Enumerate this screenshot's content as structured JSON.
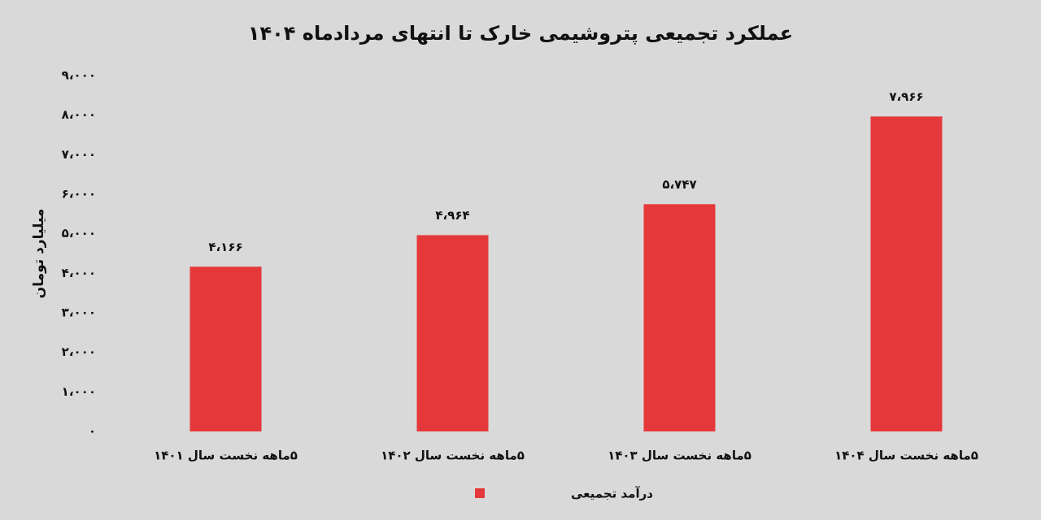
{
  "chart_data": {
    "type": "bar",
    "title": "عملکرد تجمیعی پتروشیمی خارک تا انتهای مردادماه ۱۴۰۴",
    "y_label": "میلیارد تومان",
    "categories": [
      "۵ماهه نخست سال ۱۴۰۱",
      "۵ماهه نخست سال ۱۴۰۲",
      "۵ماهه نخست سال ۱۴۰۳",
      "۵ماهه نخست سال ۱۴۰۴"
    ],
    "series": [
      {
        "name": "درآمد تجمیعی",
        "color": "#e5383b",
        "values": [
          4166,
          4964,
          5747,
          7966
        ],
        "value_labels": [
          "۴،۱۶۶",
          "۴،۹۶۴",
          "۵،۷۴۷",
          "۷،۹۶۶"
        ]
      }
    ],
    "ylim": [
      0,
      9000
    ],
    "yticks": [
      {
        "value": 0,
        "label": "۰"
      },
      {
        "value": 1000,
        "label": "۱،۰۰۰"
      },
      {
        "value": 2000,
        "label": "۲،۰۰۰"
      },
      {
        "value": 3000,
        "label": "۳،۰۰۰"
      },
      {
        "value": 4000,
        "label": "۴،۰۰۰"
      },
      {
        "value": 5000,
        "label": "۵،۰۰۰"
      },
      {
        "value": 6000,
        "label": "۶،۰۰۰"
      },
      {
        "value": 7000,
        "label": "۷،۰۰۰"
      },
      {
        "value": 8000,
        "label": "۸،۰۰۰"
      },
      {
        "value": 9000,
        "label": "۹،۰۰۰"
      }
    ],
    "grid": false,
    "legend": "bottom"
  }
}
